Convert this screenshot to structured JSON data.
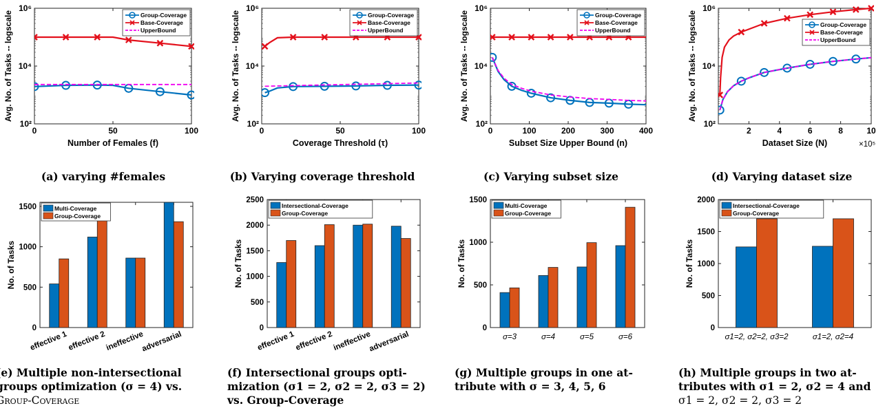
{
  "captions": {
    "a": "(a) varying #females",
    "b": "(b) Varying coverage threshold",
    "c": "(c) Varying subset size",
    "d": "(d) Varying dataset size",
    "e": [
      "(e) Multiple non-intersectional",
      "groups optimization (σ = 4) vs.",
      "Group-Coverage"
    ],
    "f": [
      "(f) Intersectional groups opti-",
      "mization (σ1 = 2, σ2 = 2, σ3 = 2)",
      "vs. Group-Coverage"
    ],
    "g": [
      "(g) Multiple groups in one at-",
      "tribute with σ = 3, 4, 5, 6"
    ],
    "h": [
      "(h) Multiple groups in two at-",
      "tributes with σ1 = 2, σ2 = 4 and",
      "σ1 = 2, σ2 = 2, σ3 = 2"
    ]
  },
  "chart_data": [
    {
      "id": "a",
      "type": "line",
      "log_y": true,
      "xlabel": "Number of Females (f)",
      "ylabel": "Avg. No. of Tasks -- logscale",
      "xlim": [
        0,
        100
      ],
      "ylim": [
        100,
        1000000
      ],
      "xticks": [
        "0",
        "50",
        "100"
      ],
      "xtick_values": [
        0,
        50,
        100
      ],
      "yticks": [
        "10²",
        "10⁴",
        "10⁶"
      ],
      "ytick_values": [
        100,
        10000,
        1000000
      ],
      "legend": "top-right",
      "series": [
        {
          "name": "Group-Coverage",
          "color": "#0072BD",
          "marker": "circle",
          "style": "solid",
          "x": [
            0,
            20,
            40,
            60,
            80,
            100
          ],
          "y": [
            1950,
            2150,
            2200,
            1700,
            1300,
            1000
          ],
          "line_x": [
            0,
            20,
            40,
            50,
            60,
            80,
            100
          ],
          "line_y": [
            1950,
            2150,
            2200,
            2150,
            1700,
            1300,
            1000
          ]
        },
        {
          "name": "Base-Coverage",
          "color": "#E3101B",
          "marker": "x",
          "style": "solid",
          "x": [
            0,
            20,
            40,
            60,
            80,
            100
          ],
          "y": [
            100000,
            100000,
            100000,
            80000,
            62000,
            48000
          ],
          "line_x": [
            0,
            20,
            40,
            50,
            60,
            80,
            100
          ],
          "line_y": [
            100000,
            100000,
            100000,
            100000,
            80000,
            62000,
            48000
          ]
        },
        {
          "name": "UpperBound",
          "color": "#F000F0",
          "marker": "none",
          "style": "dashed",
          "x": [
            0,
            100
          ],
          "y": [
            2300,
            2300
          ]
        }
      ]
    },
    {
      "id": "b",
      "type": "line",
      "log_y": true,
      "xlabel": "Coverage Threshold (τ)",
      "ylabel": "Avg. No. of Tasks -- logscale",
      "xlim": [
        0,
        100
      ],
      "ylim": [
        100,
        1000000
      ],
      "xticks": [
        "0",
        "50",
        "100"
      ],
      "xtick_values": [
        0,
        50,
        100
      ],
      "yticks": [
        "10²",
        "10⁴",
        "10⁶"
      ],
      "ytick_values": [
        100,
        10000,
        1000000
      ],
      "legend": "top-right",
      "series": [
        {
          "name": "Group-Coverage",
          "color": "#0072BD",
          "marker": "circle",
          "style": "solid",
          "x": [
            2,
            20,
            40,
            60,
            80,
            100
          ],
          "y": [
            1200,
            1950,
            2000,
            2050,
            2150,
            2200
          ],
          "line_x": [
            2,
            5,
            10,
            20,
            40,
            60,
            80,
            100
          ],
          "line_y": [
            1200,
            1350,
            1750,
            1950,
            2000,
            2050,
            2150,
            2200
          ]
        },
        {
          "name": "Base-Coverage",
          "color": "#E3101B",
          "marker": "x",
          "style": "solid",
          "x": [
            2,
            20,
            40,
            60,
            80,
            100
          ],
          "y": [
            48000,
            100000,
            100000,
            100000,
            100000,
            100000
          ],
          "line_x": [
            2,
            5,
            10,
            20,
            40,
            60,
            80,
            100
          ],
          "line_y": [
            48000,
            65000,
            95000,
            100000,
            100000,
            100000,
            100000,
            100000
          ]
        },
        {
          "name": "UpperBound",
          "color": "#F000F0",
          "marker": "none",
          "style": "dashed",
          "x": [
            2,
            10,
            100
          ],
          "y": [
            2000,
            2050,
            2600
          ]
        }
      ]
    },
    {
      "id": "c",
      "type": "line",
      "log_y": true,
      "xlabel": "Subset Size Upper Bound (n)",
      "ylabel": "Avg. No. of Tasks -- logscale",
      "xlim": [
        0,
        400
      ],
      "ylim": [
        100,
        1000000
      ],
      "xticks": [
        "0",
        "100",
        "200",
        "300",
        "400"
      ],
      "xtick_values": [
        0,
        100,
        200,
        300,
        400
      ],
      "yticks": [
        "10²",
        "10⁴",
        "10⁶"
      ],
      "ytick_values": [
        100,
        10000,
        1000000
      ],
      "legend": "top-right",
      "series": [
        {
          "name": "Group-Coverage",
          "color": "#0072BD",
          "marker": "circle",
          "style": "solid",
          "x": [
            5,
            55,
            105,
            155,
            205,
            255,
            305,
            355
          ],
          "y": [
            20000,
            2000,
            1150,
            800,
            650,
            550,
            520,
            480
          ],
          "line_x": [
            5,
            20,
            35,
            55,
            80,
            105,
            155,
            205,
            255,
            305,
            355,
            400
          ],
          "line_y": [
            20000,
            6500,
            3400,
            2000,
            1450,
            1150,
            800,
            650,
            550,
            520,
            480,
            460
          ]
        },
        {
          "name": "Base-Coverage",
          "color": "#E3101B",
          "marker": "x",
          "style": "solid",
          "x": [
            5,
            55,
            105,
            155,
            205,
            255,
            305,
            355
          ],
          "y": [
            100000,
            100000,
            100000,
            100000,
            100000,
            100000,
            100000,
            100000
          ],
          "line_x": [
            5,
            400
          ],
          "line_y": [
            100000,
            100000
          ]
        },
        {
          "name": "UpperBound",
          "color": "#F000F0",
          "marker": "none",
          "style": "dashed",
          "x": [
            5,
            20,
            35,
            55,
            80,
            105,
            155,
            205,
            255,
            305,
            355,
            400
          ],
          "y": [
            20000,
            7000,
            3800,
            2300,
            1700,
            1350,
            1000,
            850,
            750,
            700,
            650,
            620
          ]
        }
      ]
    },
    {
      "id": "d",
      "type": "line",
      "log_y": true,
      "xlabel": "Dataset Size (N)",
      "ylabel": "Avg. No. of Tasks -- logscale",
      "x_multiplier": "×10⁵",
      "xlim": [
        0,
        10
      ],
      "ylim": [
        100,
        1000000
      ],
      "xticks": [
        "2",
        "4",
        "6",
        "8",
        "10"
      ],
      "xtick_values": [
        2,
        4,
        6,
        8,
        10
      ],
      "yticks": [
        "10²",
        "10⁴",
        "10⁶"
      ],
      "ytick_values": [
        100,
        10000,
        1000000
      ],
      "legend": "right",
      "series": [
        {
          "name": "Group-Coverage",
          "color": "#0072BD",
          "marker": "circle",
          "style": "solid",
          "x": [
            0.1,
            1.5,
            3,
            4.5,
            6,
            7.5,
            9
          ],
          "y": [
            300,
            3000,
            6000,
            8500,
            11500,
            14500,
            17500
          ],
          "line_x": [
            0.1,
            0.3,
            0.6,
            1,
            1.5,
            2,
            3,
            4.5,
            6,
            7.5,
            9,
            10
          ],
          "line_y": [
            300,
            700,
            1300,
            2100,
            3000,
            3900,
            6000,
            8500,
            11500,
            14500,
            17500,
            19500
          ]
        },
        {
          "name": "Base-Coverage",
          "color": "#E3101B",
          "marker": "x",
          "style": "solid",
          "x": [
            0.1,
            1.5,
            3,
            4.5,
            6,
            7.5,
            9,
            10
          ],
          "y": [
            1000,
            150000,
            300000,
            450000,
            600000,
            750000,
            900000,
            1000000
          ],
          "line_x": [
            0.1,
            0.15,
            0.25,
            0.4,
            0.7,
            1,
            1.5,
            3,
            4.5,
            6,
            7.5,
            9,
            10
          ],
          "line_y": [
            1000,
            4000,
            20000,
            45000,
            80000,
            110000,
            150000,
            300000,
            450000,
            600000,
            750000,
            900000,
            1000000
          ]
        },
        {
          "name": "UpperBound",
          "color": "#F000F0",
          "marker": "none",
          "style": "dashed",
          "x": [
            0.1,
            0.3,
            0.6,
            1,
            1.5,
            2,
            3,
            4.5,
            6,
            7.5,
            9,
            10
          ],
          "y": [
            300,
            700,
            1300,
            2100,
            3000,
            3900,
            6000,
            8500,
            11500,
            14500,
            17500,
            19500
          ]
        }
      ]
    },
    {
      "id": "e",
      "type": "bar",
      "ylabel": "No. of Tasks",
      "categories": [
        "effective 1",
        "effective 2",
        "ineffective",
        "adversarial"
      ],
      "ylim": [
        0,
        1550
      ],
      "yticks": [
        "0",
        "500",
        "1000",
        "1500"
      ],
      "ytick_values": [
        0,
        500,
        1000,
        1500
      ],
      "rotated_labels": true,
      "legend": "top-left",
      "series": [
        {
          "name": "Multi-Coverage",
          "color": "#0072BD",
          "values": [
            540,
            1120,
            860,
            1550
          ]
        },
        {
          "name": "Group-Coverage",
          "color": "#D95319",
          "values": [
            850,
            1430,
            860,
            1310
          ]
        }
      ]
    },
    {
      "id": "f",
      "type": "bar",
      "ylabel": "No. of Tasks",
      "categories": [
        "effective 1",
        "effective 2",
        "ineffective",
        "adversarial"
      ],
      "ylim": [
        0,
        2500
      ],
      "yticks": [
        "0",
        "500",
        "1000",
        "1500",
        "2000",
        "2500"
      ],
      "ytick_values": [
        0,
        500,
        1000,
        1500,
        2000,
        2500
      ],
      "rotated_labels": true,
      "legend": "top-left",
      "series": [
        {
          "name": "Intersectional-Coverage",
          "color": "#0072BD",
          "values": [
            1270,
            1600,
            2000,
            1980
          ]
        },
        {
          "name": "Group-Coverage",
          "color": "#D95319",
          "values": [
            1700,
            2010,
            2020,
            1740
          ]
        }
      ]
    },
    {
      "id": "g",
      "type": "bar",
      "ylabel": "No. of Tasks",
      "categories": [
        "σ=3",
        "σ=4",
        "σ=5",
        "σ=6"
      ],
      "ylim": [
        0,
        1500
      ],
      "yticks": [
        "0",
        "500",
        "1000",
        "1500"
      ],
      "ytick_values": [
        0,
        500,
        1000,
        1500
      ],
      "rotated_labels": false,
      "legend": "top-left",
      "series": [
        {
          "name": "Multi-Coverage",
          "color": "#0072BD",
          "values": [
            410,
            610,
            710,
            960
          ]
        },
        {
          "name": "Group-Coverage",
          "color": "#D95319",
          "values": [
            465,
            705,
            995,
            1410
          ]
        }
      ]
    },
    {
      "id": "h",
      "type": "bar",
      "ylabel": "No. of Tasks",
      "categories": [
        "σ1=2, σ2=2, σ3=2",
        "σ1=2, σ2=4"
      ],
      "ylim": [
        0,
        2000
      ],
      "yticks": [
        "0",
        "500",
        "1000",
        "1500",
        "2000"
      ],
      "ytick_values": [
        0,
        500,
        1000,
        1500,
        2000
      ],
      "rotated_labels": false,
      "legend": "top-left",
      "series": [
        {
          "name": "Intersectional-Coverage",
          "color": "#0072BD",
          "values": [
            1260,
            1270
          ]
        },
        {
          "name": "Group-Coverage",
          "color": "#D95319",
          "values": [
            1700,
            1700
          ]
        }
      ]
    }
  ]
}
